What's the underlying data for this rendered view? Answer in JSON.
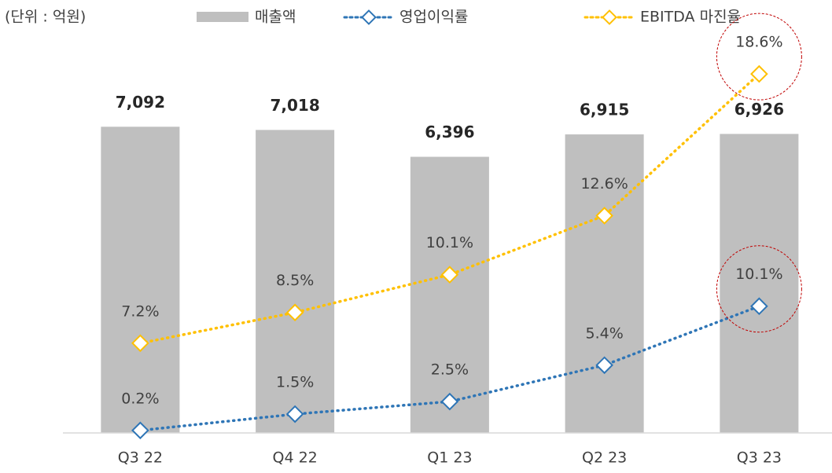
{
  "chart_data": {
    "type": "bar-line",
    "unit": "(단위 : 억원)",
    "categories": [
      "Q3 22",
      "Q4 22",
      "Q1 23",
      "Q2 23",
      "Q3 23"
    ],
    "bars": {
      "name": "매출액",
      "color": "#bfbfbf",
      "values": [
        7092,
        7018,
        6396,
        6915,
        6926
      ],
      "value_labels": [
        "7,092",
        "7,018",
        "6,396",
        "6,915",
        "6,926"
      ],
      "ylim": [
        0,
        9300
      ]
    },
    "series": [
      {
        "name": "영업이익률",
        "color": "#2e75b6",
        "values": [
          0.2,
          1.5,
          2.5,
          5.4,
          10.1
        ],
        "value_labels": [
          "0.2%",
          "1.5%",
          "2.5%",
          "5.4%",
          "10.1%"
        ],
        "ylim": [
          0,
          32
        ]
      },
      {
        "name": "EBITDA 마진율",
        "color": "#ffc000",
        "values": [
          7.2,
          8.5,
          10.1,
          12.6,
          18.6
        ],
        "value_labels": [
          "7.2%",
          "8.5%",
          "10.1%",
          "12.6%",
          "18.6%"
        ],
        "ylim": [
          3.4,
          20.4
        ]
      }
    ],
    "highlight_last": true
  }
}
